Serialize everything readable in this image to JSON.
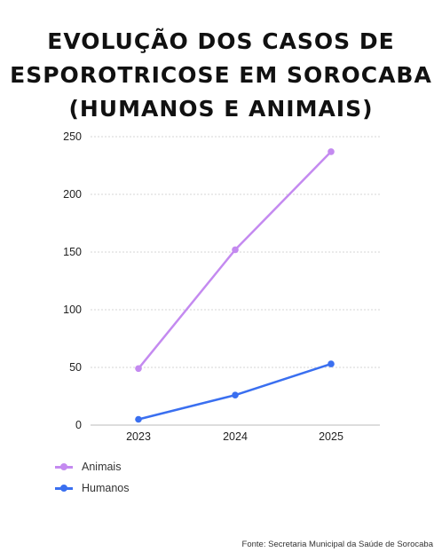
{
  "title_lines": [
    "EVOLUÇÃO DOS CASOS DE",
    "ESPOROTRICOSE EM SOROCABA",
    "(HUMANOS E ANIMAIS)"
  ],
  "source": "Fonte: Secretaria Municipal da Saúde de Sorocaba",
  "colors": {
    "animais": "#c48af0",
    "humanos": "#3a6ff0",
    "grid": "#d4d4d4",
    "axis": "#bbbbbb",
    "tick_text": "#222222"
  },
  "chart_data": {
    "type": "line",
    "x": [
      "2023",
      "2024",
      "2025"
    ],
    "series": [
      {
        "name": "Animais",
        "values": [
          49,
          152,
          237
        ]
      },
      {
        "name": "Humanos",
        "values": [
          5,
          26,
          53
        ]
      }
    ],
    "yticks": [
      "0",
      "50",
      "100",
      "150",
      "200",
      "250"
    ],
    "ylim": [
      0,
      250
    ],
    "grid": true,
    "legend_position": "bottom-left"
  }
}
